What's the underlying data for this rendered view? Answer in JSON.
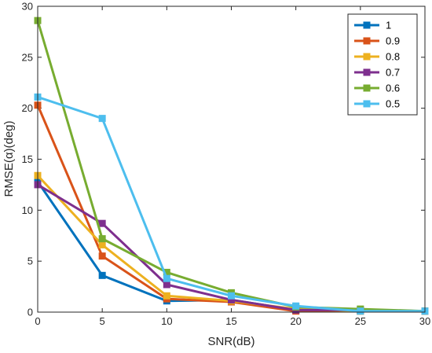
{
  "chart_data": {
    "type": "line",
    "x": [
      0,
      5,
      10,
      15,
      20,
      25,
      30
    ],
    "xlabel": "SNR(dB)",
    "ylabel": "RMSE(α)(deg)",
    "xlim": [
      0,
      30
    ],
    "ylim": [
      0,
      30
    ],
    "xticks": [
      0,
      5,
      10,
      15,
      20,
      25,
      30
    ],
    "yticks": [
      0,
      5,
      10,
      15,
      20,
      25,
      30
    ],
    "grid": false,
    "legend_position": "top-right",
    "series": [
      {
        "name": "1",
        "color": "#0072BD",
        "values": [
          12.8,
          3.6,
          1.1,
          1.2,
          0.2,
          0.1,
          0.1
        ]
      },
      {
        "name": "0.9",
        "color": "#D95319",
        "values": [
          20.3,
          5.5,
          1.3,
          1.0,
          0.1,
          0.1,
          0.1
        ]
      },
      {
        "name": "0.8",
        "color": "#EDB120",
        "values": [
          13.4,
          6.6,
          1.6,
          1.1,
          0.3,
          0.1,
          0.1
        ]
      },
      {
        "name": "0.7",
        "color": "#7E2F8E",
        "values": [
          12.5,
          8.7,
          2.7,
          1.2,
          0.2,
          0.2,
          0.1
        ]
      },
      {
        "name": "0.6",
        "color": "#77AC30",
        "values": [
          28.6,
          7.2,
          3.9,
          1.9,
          0.5,
          0.3,
          0.1
        ]
      },
      {
        "name": "0.5",
        "color": "#4DBEEE",
        "values": [
          21.1,
          19.0,
          3.3,
          1.6,
          0.6,
          0.1,
          0.1
        ]
      }
    ]
  }
}
